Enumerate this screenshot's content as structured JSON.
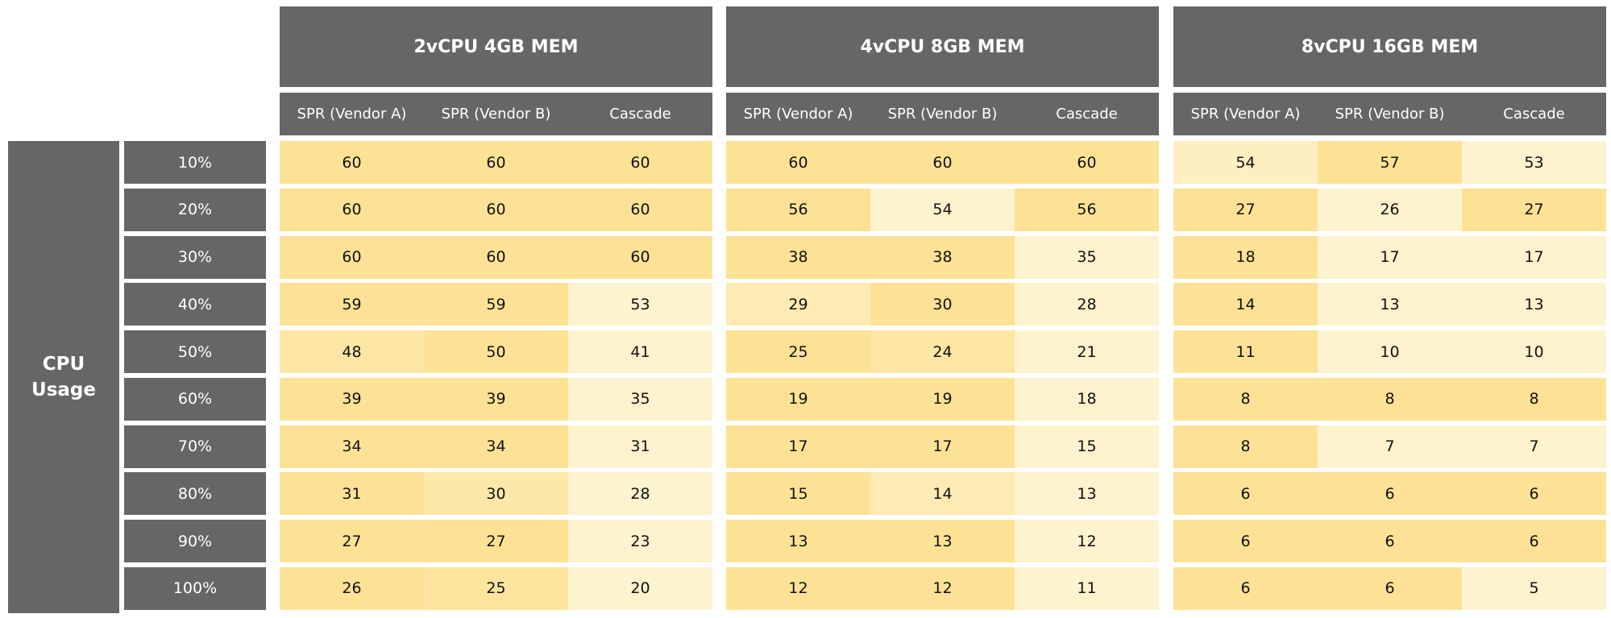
{
  "row_header": "CPU Usage",
  "groups": [
    {
      "title": "2vCPU 4GB MEM",
      "columns": [
        "SPR (Vendor A)",
        "SPR (Vendor B)",
        "Cascade"
      ]
    },
    {
      "title": "4vCPU 8GB MEM",
      "columns": [
        "SPR (Vendor A)",
        "SPR (Vendor B)",
        "Cascade"
      ]
    },
    {
      "title": "8vCPU 16GB MEM",
      "columns": [
        "SPR (Vendor A)",
        "SPR (Vendor B)",
        "Cascade"
      ]
    }
  ],
  "rows": [
    {
      "label": "10%",
      "values": [
        [
          60,
          60,
          60
        ],
        [
          60,
          60,
          60
        ],
        [
          54,
          57,
          53
        ]
      ]
    },
    {
      "label": "20%",
      "values": [
        [
          60,
          60,
          60
        ],
        [
          56,
          54,
          56
        ],
        [
          27,
          26,
          27
        ]
      ]
    },
    {
      "label": "30%",
      "values": [
        [
          60,
          60,
          60
        ],
        [
          38,
          38,
          35
        ],
        [
          18,
          17,
          17
        ]
      ]
    },
    {
      "label": "40%",
      "values": [
        [
          59,
          59,
          53
        ],
        [
          29,
          30,
          28
        ],
        [
          14,
          13,
          13
        ]
      ]
    },
    {
      "label": "50%",
      "values": [
        [
          48,
          50,
          41
        ],
        [
          25,
          24,
          21
        ],
        [
          11,
          10,
          10
        ]
      ]
    },
    {
      "label": "60%",
      "values": [
        [
          39,
          39,
          35
        ],
        [
          19,
          19,
          18
        ],
        [
          8,
          8,
          8
        ]
      ]
    },
    {
      "label": "70%",
      "values": [
        [
          34,
          34,
          31
        ],
        [
          17,
          17,
          15
        ],
        [
          8,
          7,
          7
        ]
      ]
    },
    {
      "label": "80%",
      "values": [
        [
          31,
          30,
          28
        ],
        [
          15,
          14,
          13
        ],
        [
          6,
          6,
          6
        ]
      ]
    },
    {
      "label": "90%",
      "values": [
        [
          27,
          27,
          23
        ],
        [
          13,
          13,
          12
        ],
        [
          6,
          6,
          6
        ]
      ]
    },
    {
      "label": "100%",
      "values": [
        [
          26,
          25,
          20
        ],
        [
          12,
          12,
          11
        ],
        [
          6,
          6,
          5
        ]
      ]
    }
  ]
}
